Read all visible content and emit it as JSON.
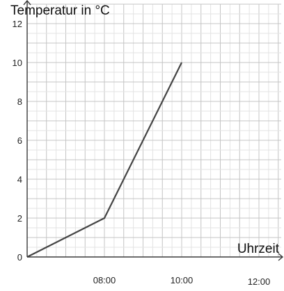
{
  "chart_data": {
    "type": "line",
    "title": "",
    "ylabel": "Temperatur in °C",
    "xlabel": "Uhrzeit",
    "x_unit": "hours",
    "x_start": "06:00",
    "xlim": [
      6,
      12.5
    ],
    "ylim": [
      0,
      13
    ],
    "x_ticks": [
      {
        "value": 8,
        "label": "08:00"
      },
      {
        "value": 10,
        "label": "10:00"
      },
      {
        "value": 12,
        "label": "12:00"
      }
    ],
    "y_ticks": [
      0,
      2,
      4,
      6,
      8,
      10,
      12
    ],
    "grid": true,
    "series": [
      {
        "x": [
          6,
          8,
          10
        ],
        "y": [
          0,
          2,
          10
        ]
      }
    ],
    "colors": {
      "line": "#444444",
      "axis": "#3a3a3a",
      "grid_major": "#c4c4c4",
      "grid_minor": "#e3e3e3"
    }
  }
}
